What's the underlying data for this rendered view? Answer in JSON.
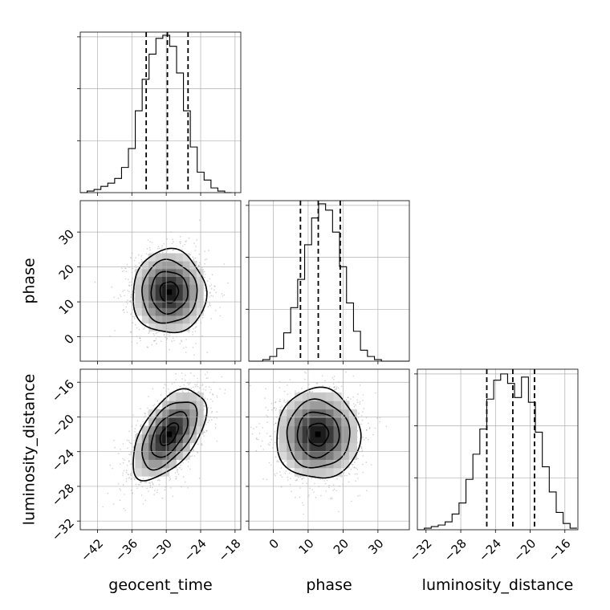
{
  "chart_data": {
    "type": "corner",
    "parameters": [
      "geocent_time",
      "phase",
      "luminosity_distance"
    ],
    "axis_labels": {
      "x": [
        "geocent_time",
        "phase",
        "luminosity_distance"
      ],
      "y": [
        "",
        "phase",
        "luminosity_distance"
      ]
    },
    "grid": true,
    "axes": {
      "geocent_time": {
        "range": [
          -45,
          -17
        ],
        "ticks": [
          -42,
          -36,
          -30,
          -24,
          -18
        ],
        "tick_labels": [
          "−42",
          "−36",
          "−30",
          "−24",
          "−18"
        ]
      },
      "phase": {
        "range": [
          -7,
          39
        ],
        "ticks": [
          0,
          10,
          20,
          30
        ],
        "tick_labels": [
          "0",
          "10",
          "20",
          "30"
        ]
      },
      "luminosity_distance": {
        "range": [
          -33,
          -14.5
        ],
        "ticks": [
          -32,
          -28,
          -24,
          -20,
          -16
        ],
        "tick_labels": [
          "−32",
          "−28",
          "−24",
          "−20",
          "−16"
        ]
      }
    },
    "histograms": [
      {
        "parameter": "geocent_time",
        "bin_edges": [
          -45,
          -43.8,
          -42.6,
          -41.4,
          -40.2,
          -39,
          -37.8,
          -36.6,
          -35.4,
          -34.2,
          -33,
          -31.8,
          -30.6,
          -29.4,
          -28.2,
          -27,
          -25.8,
          -24.6,
          -23.4,
          -22.2,
          -21,
          -19.8,
          -18.6
        ],
        "counts": [
          0,
          0.01,
          0.02,
          0.04,
          0.06,
          0.09,
          0.16,
          0.28,
          0.52,
          0.72,
          0.88,
          0.98,
          1.0,
          0.93,
          0.76,
          0.52,
          0.29,
          0.13,
          0.08,
          0.03,
          0.01,
          0
        ],
        "quantiles": [
          -33.5,
          -29.8,
          -26.2
        ],
        "ylim": [
          0,
          1.02
        ]
      },
      {
        "parameter": "phase",
        "bin_edges": [
          -7,
          -5,
          -3,
          -1,
          1,
          3,
          5,
          7,
          9,
          11,
          13,
          15,
          17,
          19,
          21,
          23,
          25,
          27,
          29,
          31,
          33,
          35,
          37,
          39
        ],
        "counts": [
          0,
          0,
          0.01,
          0.03,
          0.08,
          0.18,
          0.34,
          0.52,
          0.74,
          0.91,
          1.0,
          0.96,
          0.82,
          0.6,
          0.37,
          0.19,
          0.07,
          0.03,
          0.01,
          0,
          0,
          0,
          0
        ],
        "quantiles": [
          7.8,
          12.9,
          19.2
        ],
        "ylim": [
          0,
          1.02
        ]
      },
      {
        "parameter": "luminosity_distance",
        "bin_edges": [
          -33,
          -32.2,
          -31.4,
          -30.6,
          -29.8,
          -29,
          -28.2,
          -27.4,
          -26.6,
          -25.8,
          -25,
          -24.2,
          -23.4,
          -22.6,
          -21.8,
          -21,
          -20.2,
          -19.4,
          -18.6,
          -17.8,
          -17,
          -16.2,
          -15.4,
          -14.6
        ],
        "counts": [
          0,
          0.01,
          0.02,
          0.03,
          0.05,
          0.1,
          0.17,
          0.32,
          0.48,
          0.64,
          0.83,
          0.95,
          0.99,
          0.93,
          0.84,
          0.97,
          0.81,
          0.62,
          0.4,
          0.24,
          0.11,
          0.04,
          0.01
        ],
        "quantiles": [
          -25,
          -22,
          -19.5
        ],
        "ylim": [
          0,
          1.02
        ]
      }
    ],
    "density_2d": [
      {
        "x": "geocent_time",
        "y": "phase",
        "mean": [
          -29.5,
          12.8
        ],
        "sd": [
          3.2,
          6.0
        ],
        "correlation": 0.0,
        "levels": [
          "0.5σ",
          "1σ",
          "1.5σ",
          "2σ"
        ]
      },
      {
        "x": "geocent_time",
        "y": "luminosity_distance",
        "mean": [
          -29.5,
          -22
        ],
        "sd": [
          3.2,
          2.6
        ],
        "correlation": 0.55,
        "levels": [
          "0.5σ",
          "1σ",
          "1.5σ",
          "2σ"
        ]
      },
      {
        "x": "phase",
        "y": "luminosity_distance",
        "mean": [
          12.8,
          -22
        ],
        "sd": [
          6.0,
          2.6
        ],
        "correlation": 0.0,
        "levels": [
          "0.5σ",
          "1σ",
          "1.5σ",
          "2σ"
        ]
      }
    ]
  }
}
